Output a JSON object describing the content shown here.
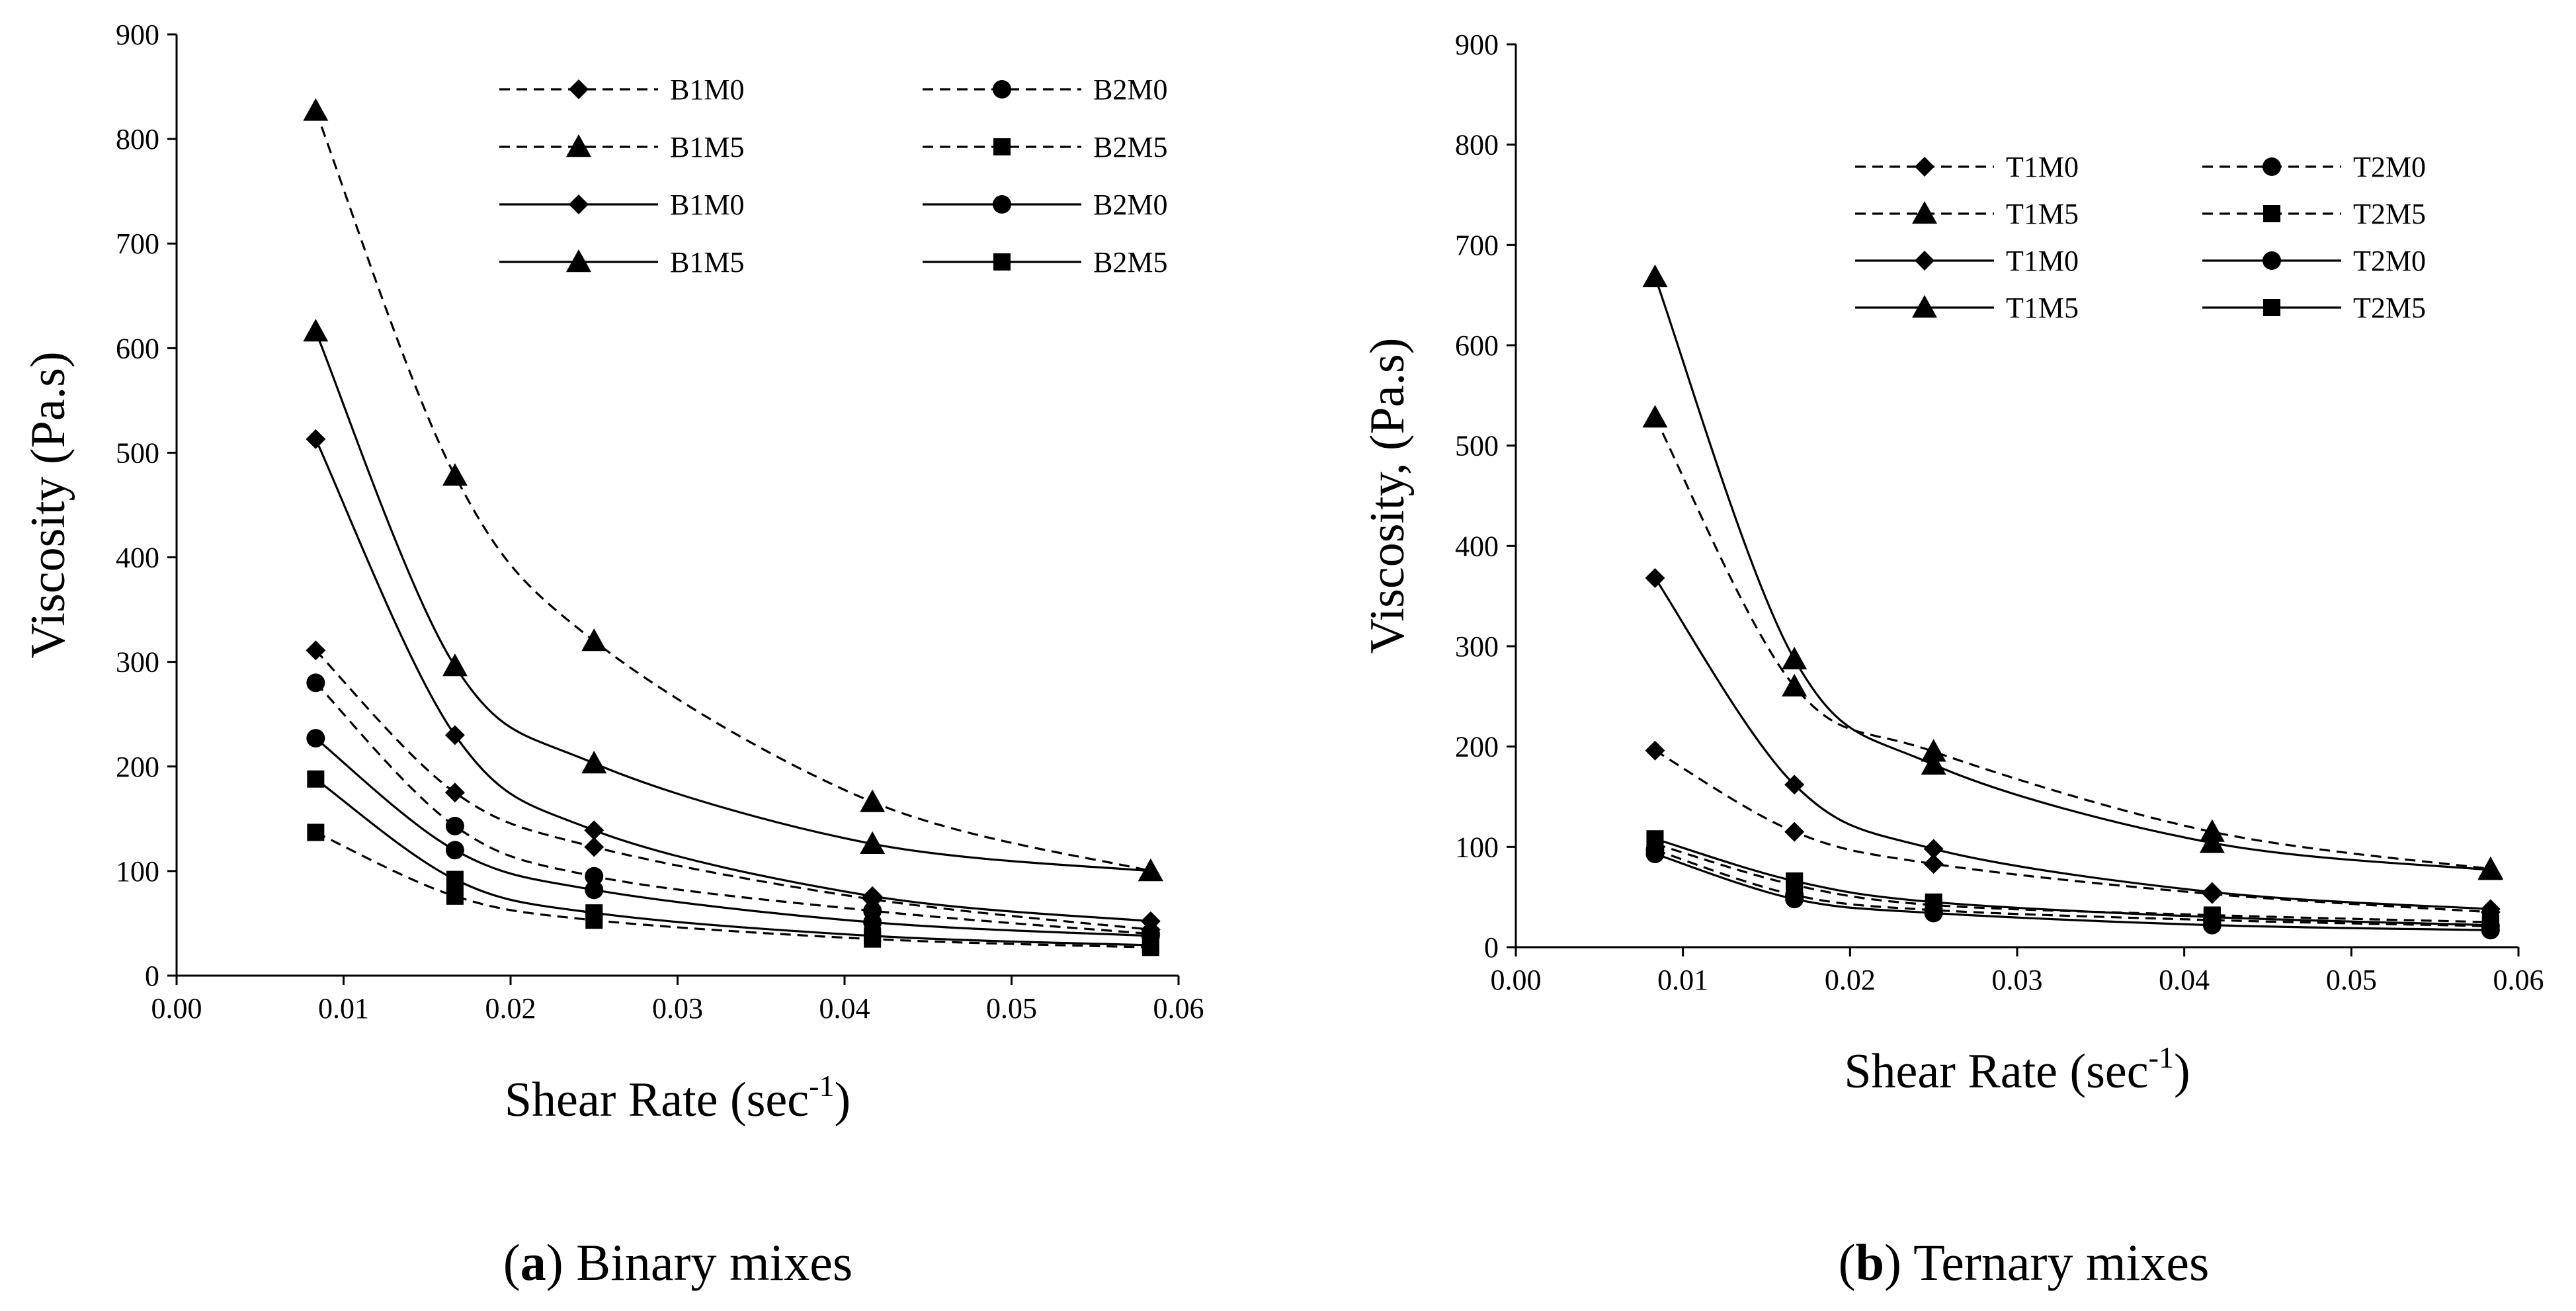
{
  "chart_data": [
    {
      "type": "line",
      "xlabel": "Shear Rate (sec",
      "xlabel_sup": "-1",
      "xlabel_close": ")",
      "ylabel": "Viscosity (Pa.s)",
      "xlim": [
        0,
        0.06
      ],
      "ylim": [
        0,
        900
      ],
      "xticks": [
        "0.00",
        "0.01",
        "0.02",
        "0.03",
        "0.04",
        "0.05",
        "0.06"
      ],
      "yticks": [
        "0",
        "100",
        "200",
        "300",
        "400",
        "500",
        "600",
        "700",
        "800",
        "900"
      ],
      "grid": false,
      "legend_position": "top-right",
      "caption_letter": "a",
      "caption_text": " Binary mixes",
      "x": [
        0.00833,
        0.01667,
        0.025,
        0.04167,
        0.05833
      ],
      "series": [
        {
          "name": "B1M0",
          "style": "dashed",
          "marker": "diamond",
          "values": [
            311,
            175,
            123,
            73,
            44
          ]
        },
        {
          "name": "B2M0",
          "style": "dashed",
          "marker": "circle",
          "values": [
            280,
            143,
            95,
            62,
            40
          ]
        },
        {
          "name": "B1M5",
          "style": "dashed",
          "marker": "triangle",
          "values": [
            827,
            478,
            320,
            166,
            100
          ]
        },
        {
          "name": "B2M5",
          "style": "dashed",
          "marker": "square",
          "values": [
            137,
            76,
            53,
            35,
            27
          ]
        },
        {
          "name": "B1M0",
          "style": "solid",
          "marker": "diamond",
          "values": [
            513,
            230,
            139,
            76,
            52
          ]
        },
        {
          "name": "B2M0",
          "style": "solid",
          "marker": "circle",
          "values": [
            227,
            120,
            82,
            51,
            38
          ]
        },
        {
          "name": "B1M5",
          "style": "solid",
          "marker": "triangle",
          "values": [
            616,
            296,
            203,
            126,
            100
          ]
        },
        {
          "name": "B2M5",
          "style": "solid",
          "marker": "square",
          "values": [
            188,
            92,
            60,
            38,
            29
          ]
        }
      ]
    },
    {
      "type": "line",
      "xlabel": "Shear Rate (sec",
      "xlabel_sup": "-1",
      "xlabel_close": ")",
      "ylabel": "Viscosity, (Pa.s)",
      "xlim": [
        0,
        0.06
      ],
      "ylim": [
        0,
        900
      ],
      "xticks": [
        "0.00",
        "0.01",
        "0.02",
        "0.03",
        "0.04",
        "0.05",
        "0.06"
      ],
      "yticks": [
        "0",
        "100",
        "200",
        "300",
        "400",
        "500",
        "600",
        "700",
        "800",
        "900"
      ],
      "grid": false,
      "legend_position": "top-right",
      "caption_letter": "b",
      "caption_text": " Ternary mixes",
      "x": [
        0.00833,
        0.01667,
        0.025,
        0.04167,
        0.05833
      ],
      "series": [
        {
          "name": "T1M0",
          "style": "dashed",
          "marker": "diamond",
          "values": [
            196,
            115,
            83,
            53,
            35
          ]
        },
        {
          "name": "T2M0",
          "style": "dashed",
          "marker": "circle",
          "values": [
            97,
            52,
            37,
            27,
            21
          ]
        },
        {
          "name": "T1M5",
          "style": "dashed",
          "marker": "triangle",
          "values": [
            528,
            260,
            195,
            115,
            78
          ]
        },
        {
          "name": "T2M5",
          "style": "dashed",
          "marker": "square",
          "values": [
            103,
            62,
            42,
            32,
            25
          ]
        },
        {
          "name": "T1M0",
          "style": "solid",
          "marker": "diamond",
          "values": [
            368,
            162,
            98,
            55,
            38
          ]
        },
        {
          "name": "T2M0",
          "style": "solid",
          "marker": "circle",
          "values": [
            93,
            48,
            34,
            22,
            17
          ]
        },
        {
          "name": "T1M5",
          "style": "solid",
          "marker": "triangle",
          "values": [
            668,
            287,
            182,
            104,
            77
          ]
        },
        {
          "name": "T2M5",
          "style": "solid",
          "marker": "square",
          "values": [
            108,
            66,
            45,
            30,
            22
          ]
        }
      ]
    }
  ]
}
